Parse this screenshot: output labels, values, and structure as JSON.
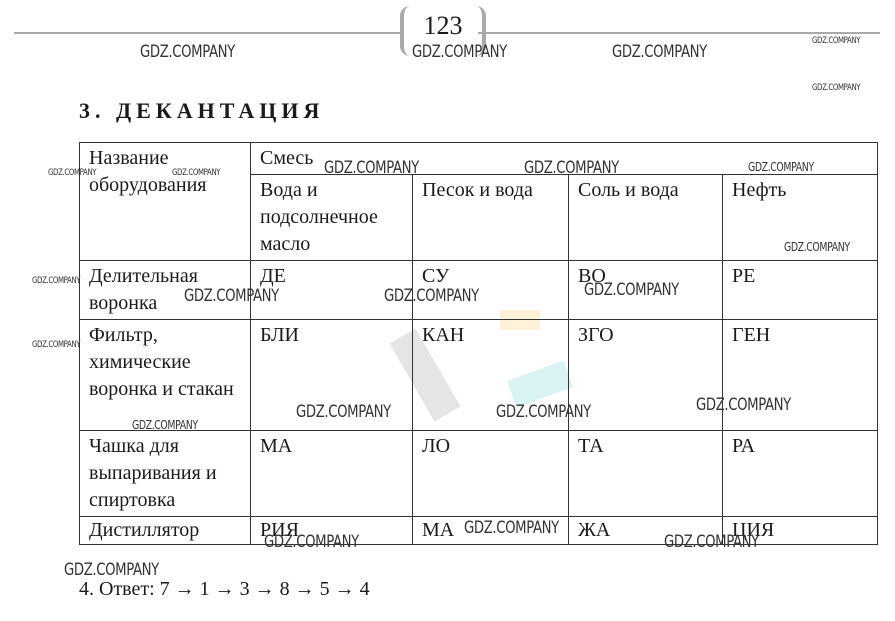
{
  "page_number": "123",
  "section_title": "3. ДЕКАНТАЦИЯ",
  "table": {
    "corner_header": "Название оборудования",
    "group_header": "Смесь",
    "columns": [
      "Вода и подсолнечное масло",
      "Песок и вода",
      "Соль и вода",
      "Нефть"
    ],
    "rows": [
      {
        "equipment": "Делительная воронка",
        "cells": [
          "ДЕ",
          "СУ",
          "ВО",
          "РЕ"
        ]
      },
      {
        "equipment": "Фильтр, химические воронка и стакан",
        "cells": [
          "БЛИ",
          "КАН",
          "ЗГО",
          "ГЕН"
        ]
      },
      {
        "equipment": "Чашка для выпаривания и спиртовка",
        "cells": [
          "МА",
          "ЛО",
          "ТА",
          "РА"
        ]
      },
      {
        "equipment": "Дистиллятор",
        "cells": [
          "РИЯ",
          "МА",
          "ЖА",
          "ЦИЯ"
        ]
      }
    ]
  },
  "answer": "4.  Ответ: 7 → 1 → 3 → 8 → 5 → 4",
  "watermark": "GDZ.COMPANY"
}
